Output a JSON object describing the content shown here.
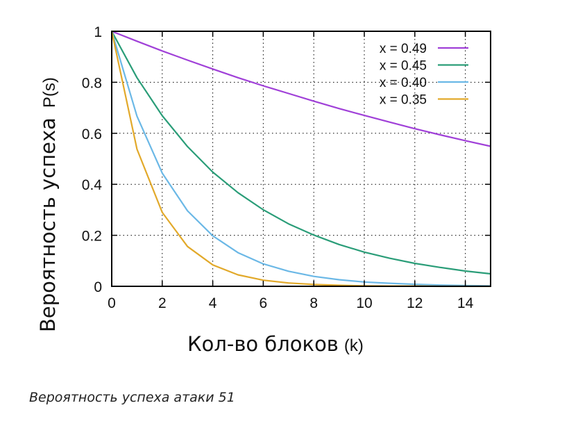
{
  "chart_data": {
    "type": "line",
    "xlabel": "Кол-во блоков",
    "xlabel_unit": "(k)",
    "ylabel": "Вероятность успеха",
    "ylabel_unit": "P(s)",
    "xlim": [
      0,
      15
    ],
    "ylim": [
      0,
      1
    ],
    "xticks": [
      "0",
      "2",
      "4",
      "6",
      "8",
      "10",
      "12",
      "14"
    ],
    "yticks": [
      "0",
      "0.2",
      "0.4",
      "0.6",
      "0.8",
      "1"
    ],
    "grid": true,
    "legend_position": "top-right",
    "x": [
      0,
      1,
      2,
      3,
      4,
      5,
      6,
      7,
      8,
      9,
      10,
      11,
      12,
      13,
      14,
      15
    ],
    "series": [
      {
        "name": "x = 0.49",
        "color": "#a040d8",
        "values": [
          1,
          0.961,
          0.923,
          0.887,
          0.852,
          0.818,
          0.786,
          0.756,
          0.726,
          0.697,
          0.67,
          0.644,
          0.618,
          0.594,
          0.571,
          0.549
        ]
      },
      {
        "name": "x = 0.45",
        "color": "#2a9d78",
        "values": [
          1,
          0.818,
          0.669,
          0.548,
          0.448,
          0.367,
          0.3,
          0.245,
          0.201,
          0.164,
          0.134,
          0.11,
          0.09,
          0.074,
          0.06,
          0.049
        ]
      },
      {
        "name": "x = 0.40",
        "color": "#6bb8e6",
        "values": [
          1,
          0.667,
          0.444,
          0.296,
          0.198,
          0.132,
          0.088,
          0.059,
          0.039,
          0.026,
          0.017,
          0.012,
          0.008,
          0.005,
          0.003,
          0.002
        ]
      },
      {
        "name": "x = 0.35",
        "color": "#e2a92a",
        "values": [
          1,
          0.538,
          0.29,
          0.156,
          0.084,
          0.045,
          0.024,
          0.013,
          0.007,
          0.004,
          0.002,
          0.001,
          0.001,
          0,
          0,
          0
        ]
      }
    ]
  },
  "caption": "Вероятность успеха атаки 51"
}
